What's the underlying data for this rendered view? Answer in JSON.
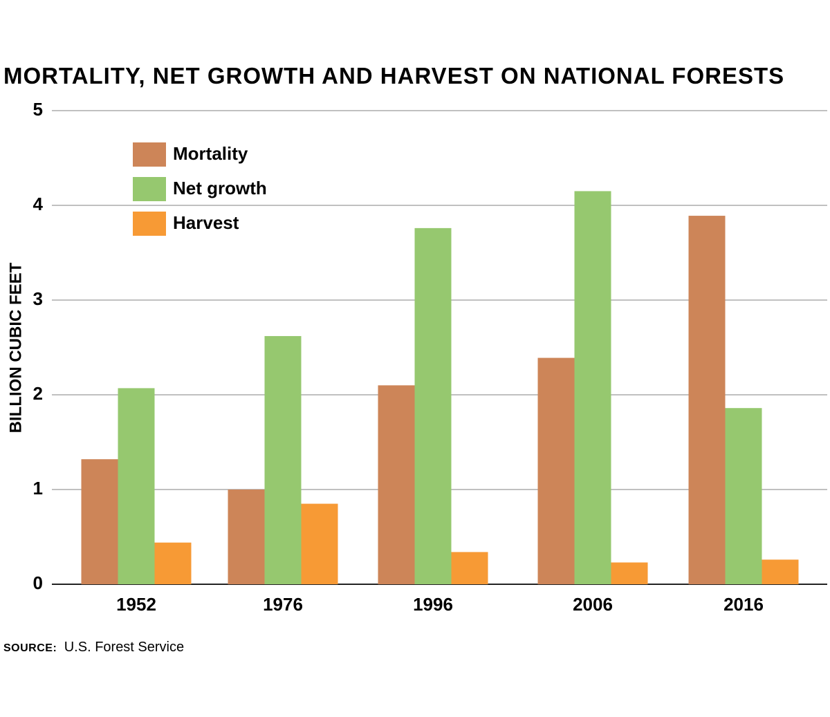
{
  "chart_data": {
    "type": "bar",
    "title": "MORTALITY, NET GROWTH AND HARVEST ON NATIONAL FORESTS",
    "ylabel": "BILLION CUBIC FEET",
    "xlabel": "",
    "ylim": [
      0,
      5
    ],
    "yticks": [
      "0",
      "1",
      "2",
      "3",
      "4",
      "5"
    ],
    "grid": true,
    "legend_position": "top-left",
    "categories": [
      "1952",
      "1976",
      "1996",
      "2006",
      "2016"
    ],
    "series": [
      {
        "name": "Mortality",
        "color": "#cd8558",
        "values": [
          1.32,
          1.0,
          2.1,
          2.39,
          3.89
        ]
      },
      {
        "name": "Net growth",
        "color": "#96c86f",
        "values": [
          2.07,
          2.62,
          3.76,
          4.15,
          1.86
        ]
      },
      {
        "name": "Harvest",
        "color": "#f79a35",
        "values": [
          0.44,
          0.85,
          0.34,
          0.23,
          0.26
        ]
      }
    ]
  },
  "source": {
    "label": "SOURCE:",
    "text": "U.S. Forest Service"
  }
}
